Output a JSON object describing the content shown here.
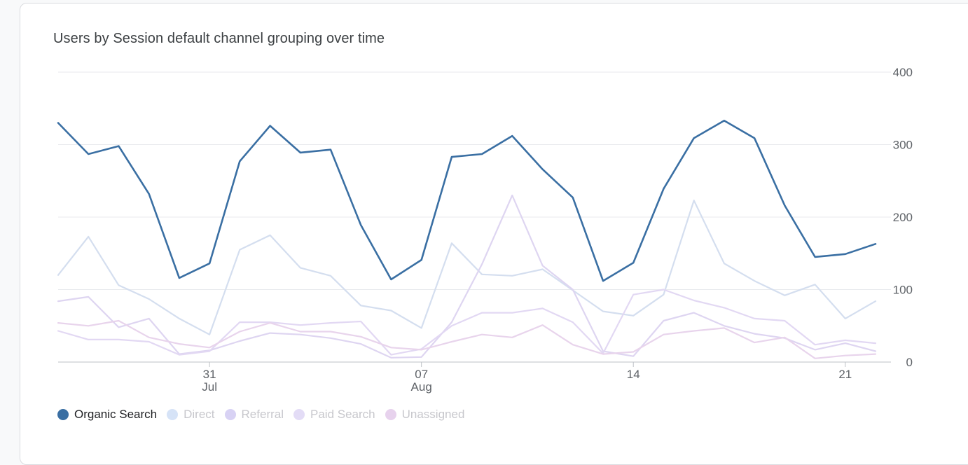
{
  "chart_data": {
    "type": "line",
    "title": "Users by Session default channel grouping over time",
    "y_ticks": [
      "0",
      "100",
      "200",
      "300",
      "400"
    ],
    "ylim": [
      0,
      400
    ],
    "x_ticks": [
      {
        "index": 5,
        "day": "31",
        "month": "Jul"
      },
      {
        "index": 12,
        "day": "07",
        "month": "Aug"
      },
      {
        "index": 19,
        "day": "14",
        "month": ""
      },
      {
        "index": 26,
        "day": "21",
        "month": ""
      }
    ],
    "grid": true,
    "series": [
      {
        "name": "Organic Search",
        "color": "#3a6fa3",
        "legend_color": "#3a6fa3",
        "emphasis": true,
        "values": [
          330,
          287,
          298,
          232,
          116,
          136,
          277,
          326,
          289,
          293,
          189,
          114,
          141,
          283,
          287,
          312,
          266,
          227,
          112,
          137,
          239,
          309,
          333,
          309,
          216,
          145,
          149,
          163
        ]
      },
      {
        "name": "Direct",
        "color": "#d4deef",
        "legend_color": "#d6e3f7",
        "emphasis": false,
        "values": [
          120,
          173,
          106,
          87,
          60,
          38,
          155,
          175,
          130,
          119,
          78,
          71,
          47,
          164,
          121,
          119,
          128,
          99,
          70,
          64,
          93,
          223,
          136,
          112,
          92,
          107,
          60,
          84
        ]
      },
      {
        "name": "Referral",
        "color": "#ded5f1",
        "legend_color": "#d8d2f4",
        "emphasis": false,
        "values": [
          84,
          90,
          48,
          60,
          11,
          16,
          29,
          40,
          38,
          33,
          25,
          6,
          7,
          55,
          135,
          230,
          133,
          100,
          15,
          8,
          57,
          68,
          50,
          39,
          33,
          17,
          26,
          15
        ]
      },
      {
        "name": "Paid Search",
        "color": "#e2d8f3",
        "legend_color": "#e3dcf6",
        "emphasis": false,
        "values": [
          43,
          31,
          31,
          28,
          10,
          15,
          55,
          55,
          51,
          54,
          56,
          10,
          18,
          50,
          68,
          68,
          74,
          55,
          12,
          93,
          100,
          85,
          75,
          60,
          57,
          24,
          30,
          26
        ]
      },
      {
        "name": "Unassigned",
        "color": "#e8d4ec",
        "legend_color": "#e7d2ed",
        "emphasis": false,
        "values": [
          54,
          50,
          57,
          34,
          25,
          20,
          42,
          54,
          42,
          42,
          35,
          20,
          17,
          28,
          38,
          34,
          51,
          24,
          11,
          14,
          38,
          43,
          47,
          27,
          34,
          5,
          9,
          11
        ]
      }
    ]
  }
}
